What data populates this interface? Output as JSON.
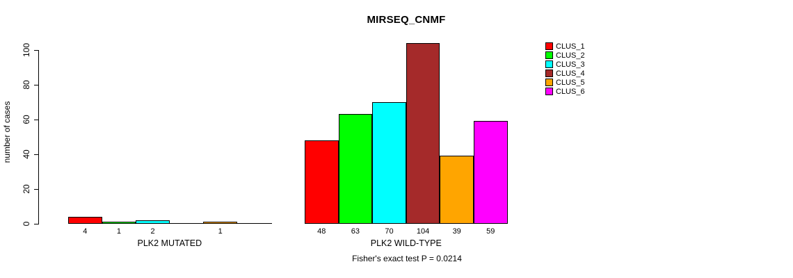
{
  "header": {
    "title": "MIRSEQ_CNMF"
  },
  "chart_data": {
    "type": "bar",
    "title": "MIRSEQ_CNMF",
    "xlabel": "",
    "ylabel": "number of cases",
    "ylim": [
      0,
      100
    ],
    "yticks": [
      0,
      20,
      40,
      60,
      80,
      100
    ],
    "grid": false,
    "legend_position": "right",
    "legend": [
      {
        "label": "CLUS_1",
        "color": "#ff0000"
      },
      {
        "label": "CLUS_2",
        "color": "#00ff00"
      },
      {
        "label": "CLUS_3",
        "color": "#00ffff"
      },
      {
        "label": "CLUS_4",
        "color": "#a52a2a"
      },
      {
        "label": "CLUS_5",
        "color": "#ffa500"
      },
      {
        "label": "CLUS_6",
        "color": "#ff00ff"
      }
    ],
    "groups": [
      {
        "label": "PLK2 MUTATED",
        "values": [
          4,
          1,
          2,
          0,
          1,
          0
        ]
      },
      {
        "label": "PLK2 WILD-TYPE",
        "values": [
          48,
          63,
          70,
          104,
          39,
          59
        ]
      }
    ],
    "bar_label_rule": "value shown under bar only when value > 0",
    "annotation": "Fisher's exact test P = 0.0214"
  }
}
